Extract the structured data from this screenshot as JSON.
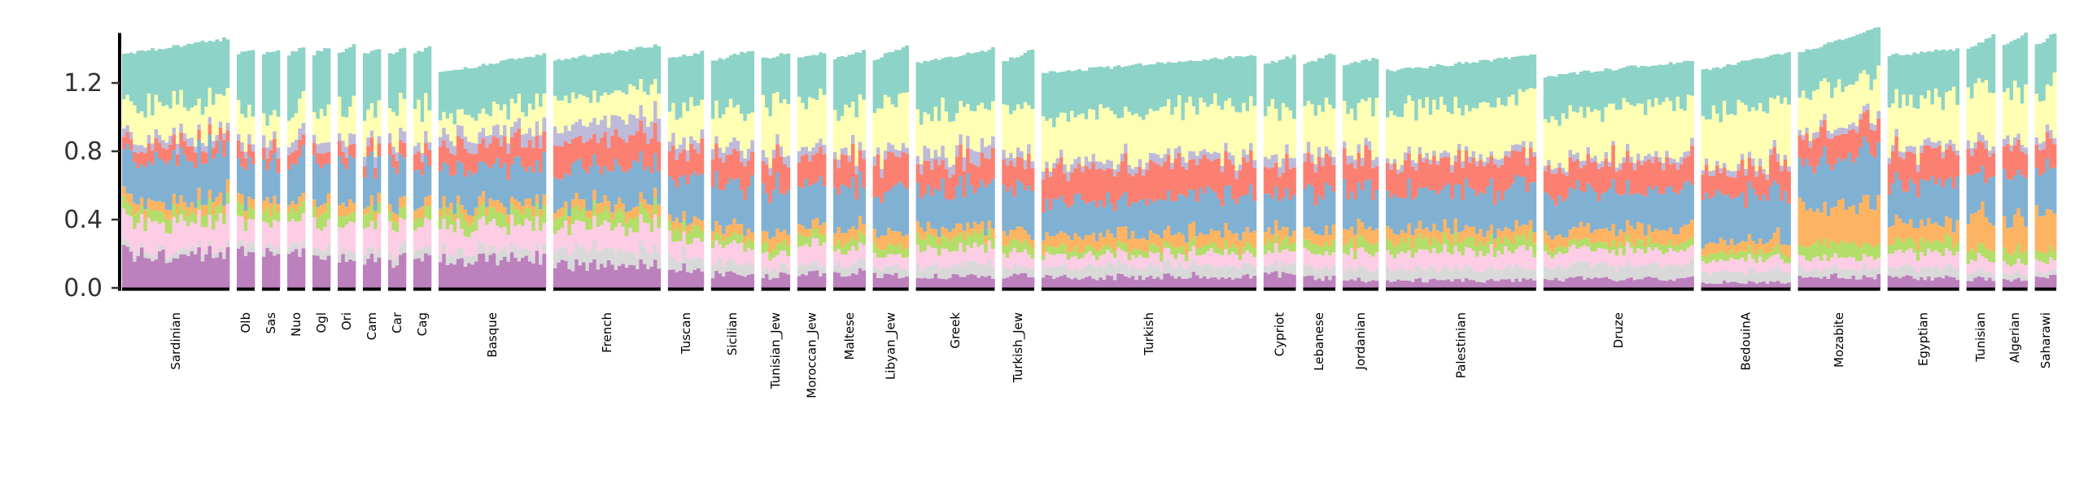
{
  "chart_data": {
    "type": "bar",
    "stacked": true,
    "title": "",
    "xlabel": "",
    "ylabel": "",
    "ylim": [
      0,
      1.55
    ],
    "yticks": [
      0.0,
      0.4,
      0.8,
      1.2
    ],
    "ytick_labels": [
      "0.0",
      "0.4",
      "0.8",
      "1.2"
    ],
    "grid": false,
    "legend": "none",
    "component_colors": [
      "#bc80bd",
      "#d9d9d9",
      "#fccde5",
      "#b3de69",
      "#fdb462",
      "#80b1d3",
      "#fb8072",
      "#bebada",
      "#ffffb3",
      "#8dd3c7"
    ],
    "populations": [
      {
        "name": "Sardinian",
        "n": 30,
        "top": [
          1.37,
          1.46
        ],
        "fractions": [
          0.18,
          0.03,
          0.15,
          0.06,
          0.05,
          0.22,
          0.07,
          0.04,
          0.18,
          0.29
        ]
      },
      {
        "name": "Olb",
        "n": 5,
        "top": [
          1.37,
          1.4
        ],
        "fractions": [
          0.18,
          0.05,
          0.13,
          0.07,
          0.05,
          0.2,
          0.08,
          0.05,
          0.17,
          0.3
        ]
      },
      {
        "name": "Sas",
        "n": 5,
        "top": [
          1.37,
          1.4
        ],
        "fractions": [
          0.18,
          0.04,
          0.14,
          0.07,
          0.06,
          0.2,
          0.07,
          0.05,
          0.15,
          0.32
        ]
      },
      {
        "name": "Nuo",
        "n": 5,
        "top": [
          1.37,
          1.41
        ],
        "fractions": [
          0.17,
          0.04,
          0.14,
          0.07,
          0.05,
          0.22,
          0.08,
          0.05,
          0.18,
          0.3
        ]
      },
      {
        "name": "Ogl",
        "n": 5,
        "top": [
          1.37,
          1.41
        ],
        "fractions": [
          0.17,
          0.05,
          0.14,
          0.07,
          0.05,
          0.2,
          0.07,
          0.05,
          0.17,
          0.32
        ]
      },
      {
        "name": "Ori",
        "n": 5,
        "top": [
          1.38,
          1.42
        ],
        "fractions": [
          0.16,
          0.05,
          0.13,
          0.06,
          0.06,
          0.21,
          0.08,
          0.05,
          0.17,
          0.31
        ]
      },
      {
        "name": "Cam",
        "n": 5,
        "top": [
          1.37,
          1.4
        ],
        "fractions": [
          0.16,
          0.05,
          0.14,
          0.07,
          0.05,
          0.21,
          0.07,
          0.05,
          0.17,
          0.32
        ]
      },
      {
        "name": "Car",
        "n": 5,
        "top": [
          1.37,
          1.4
        ],
        "fractions": [
          0.16,
          0.05,
          0.15,
          0.06,
          0.05,
          0.21,
          0.08,
          0.05,
          0.17,
          0.31
        ]
      },
      {
        "name": "Cag",
        "n": 5,
        "top": [
          1.37,
          1.41
        ],
        "fractions": [
          0.15,
          0.05,
          0.14,
          0.06,
          0.05,
          0.22,
          0.08,
          0.05,
          0.18,
          0.31
        ]
      },
      {
        "name": "Basque",
        "n": 30,
        "top": [
          1.26,
          1.37
        ],
        "fractions": [
          0.16,
          0.05,
          0.13,
          0.07,
          0.05,
          0.2,
          0.12,
          0.07,
          0.12,
          0.26
        ]
      },
      {
        "name": "French",
        "n": 30,
        "top": [
          1.33,
          1.42
        ],
        "fractions": [
          0.12,
          0.08,
          0.12,
          0.07,
          0.05,
          0.2,
          0.15,
          0.09,
          0.14,
          0.2
        ]
      },
      {
        "name": "Tuscan",
        "n": 10,
        "top": [
          1.34,
          1.38
        ],
        "fractions": [
          0.09,
          0.06,
          0.09,
          0.06,
          0.04,
          0.2,
          0.14,
          0.05,
          0.18,
          0.26
        ]
      },
      {
        "name": "Sicilian",
        "n": 12,
        "top": [
          1.33,
          1.39
        ],
        "fractions": [
          0.07,
          0.06,
          0.09,
          0.04,
          0.05,
          0.22,
          0.14,
          0.05,
          0.17,
          0.27
        ]
      },
      {
        "name": "Tunisian_Jew",
        "n": 8,
        "top": [
          1.34,
          1.38
        ],
        "fractions": [
          0.06,
          0.04,
          0.07,
          0.05,
          0.06,
          0.22,
          0.15,
          0.05,
          0.24,
          0.24
        ]
      },
      {
        "name": "Moroccan_Jew",
        "n": 8,
        "top": [
          1.34,
          1.38
        ],
        "fractions": [
          0.07,
          0.04,
          0.1,
          0.05,
          0.05,
          0.21,
          0.14,
          0.05,
          0.23,
          0.25
        ]
      },
      {
        "name": "Maltese",
        "n": 9,
        "top": [
          1.34,
          1.39
        ],
        "fractions": [
          0.08,
          0.05,
          0.08,
          0.05,
          0.06,
          0.21,
          0.14,
          0.04,
          0.21,
          0.27
        ]
      },
      {
        "name": "Libyan_Jew",
        "n": 10,
        "top": [
          1.34,
          1.42
        ],
        "fractions": [
          0.06,
          0.04,
          0.06,
          0.05,
          0.07,
          0.21,
          0.16,
          0.04,
          0.26,
          0.25
        ]
      },
      {
        "name": "Greek",
        "n": 22,
        "top": [
          1.32,
          1.4
        ],
        "fractions": [
          0.06,
          0.06,
          0.08,
          0.06,
          0.05,
          0.21,
          0.13,
          0.06,
          0.2,
          0.28
        ]
      },
      {
        "name": "Turkish_Jew",
        "n": 9,
        "top": [
          1.33,
          1.39
        ],
        "fractions": [
          0.06,
          0.04,
          0.07,
          0.05,
          0.06,
          0.21,
          0.14,
          0.04,
          0.25,
          0.26
        ]
      },
      {
        "name": "Turkish",
        "n": 60,
        "top": [
          1.26,
          1.36
        ],
        "fractions": [
          0.06,
          0.06,
          0.06,
          0.04,
          0.07,
          0.19,
          0.17,
          0.04,
          0.25,
          0.24
        ]
      },
      {
        "name": "Cypriot",
        "n": 9,
        "top": [
          1.31,
          1.36
        ],
        "fractions": [
          0.07,
          0.05,
          0.07,
          0.05,
          0.06,
          0.18,
          0.15,
          0.06,
          0.23,
          0.25
        ]
      },
      {
        "name": "Lebanese",
        "n": 9,
        "top": [
          1.31,
          1.37
        ],
        "fractions": [
          0.05,
          0.05,
          0.07,
          0.05,
          0.07,
          0.2,
          0.16,
          0.04,
          0.24,
          0.24
        ]
      },
      {
        "name": "Jordanian",
        "n": 10,
        "top": [
          1.3,
          1.35
        ],
        "fractions": [
          0.04,
          0.06,
          0.08,
          0.05,
          0.07,
          0.2,
          0.15,
          0.04,
          0.26,
          0.23
        ]
      },
      {
        "name": "Palestinian",
        "n": 42,
        "top": [
          1.27,
          1.36
        ],
        "fractions": [
          0.04,
          0.06,
          0.09,
          0.06,
          0.06,
          0.21,
          0.16,
          0.03,
          0.26,
          0.21
        ]
      },
      {
        "name": "Druze",
        "n": 42,
        "top": [
          1.24,
          1.33
        ],
        "fractions": [
          0.05,
          0.07,
          0.08,
          0.04,
          0.07,
          0.21,
          0.15,
          0.03,
          0.26,
          0.22
        ]
      },
      {
        "name": "BedouinA",
        "n": 25,
        "top": [
          1.27,
          1.38
        ],
        "fractions": [
          0.03,
          0.06,
          0.06,
          0.04,
          0.06,
          0.24,
          0.14,
          0.03,
          0.28,
          0.24
        ]
      },
      {
        "name": "Mozabite",
        "n": 23,
        "top": [
          1.38,
          1.52
        ],
        "fractions": [
          0.05,
          0.04,
          0.05,
          0.06,
          0.18,
          0.21,
          0.12,
          0.03,
          0.18,
          0.2
        ]
      },
      {
        "name": "Egyptian",
        "n": 20,
        "top": [
          1.36,
          1.4
        ],
        "fractions": [
          0.05,
          0.05,
          0.07,
          0.05,
          0.09,
          0.2,
          0.15,
          0.03,
          0.23,
          0.23
        ]
      },
      {
        "name": "Tunisian",
        "n": 8,
        "top": [
          1.4,
          1.48
        ],
        "fractions": [
          0.04,
          0.03,
          0.05,
          0.05,
          0.15,
          0.18,
          0.12,
          0.03,
          0.24,
          0.21
        ]
      },
      {
        "name": "Algerian",
        "n": 7,
        "top": [
          1.42,
          1.49
        ],
        "fractions": [
          0.04,
          0.03,
          0.04,
          0.05,
          0.14,
          0.18,
          0.12,
          0.03,
          0.24,
          0.24
        ]
      },
      {
        "name": "Saharawi",
        "n": 6,
        "top": [
          1.42,
          1.49
        ],
        "fractions": [
          0.05,
          0.02,
          0.05,
          0.04,
          0.18,
          0.18,
          0.1,
          0.03,
          0.23,
          0.22
        ]
      }
    ]
  }
}
